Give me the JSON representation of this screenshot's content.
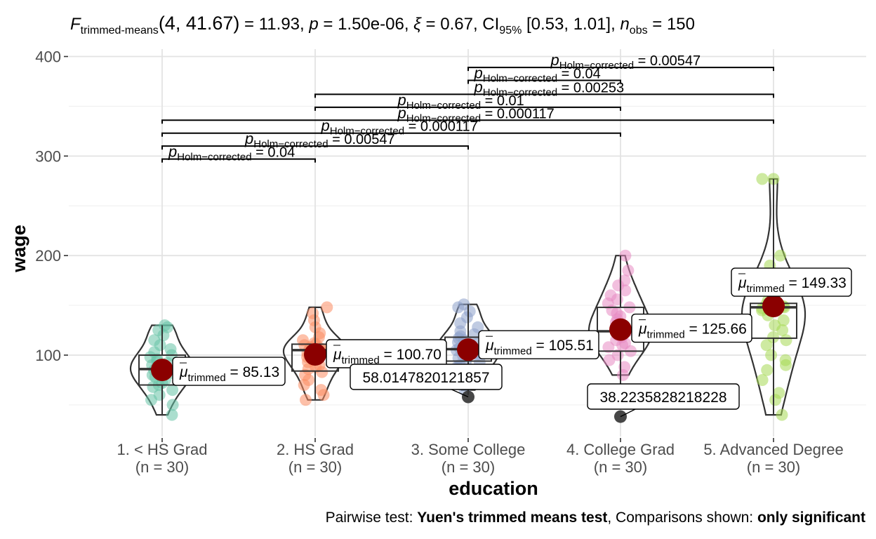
{
  "chart_data": {
    "type": "violin-box",
    "subtitle": {
      "parts": {
        "F": "F",
        "F_sub": "trimmed-means",
        "df": "(4, 41.67)",
        "stat": " = 11.93, ",
        "p": "p",
        "p_val": " = 1.50e-06, ",
        "xi": "ξ",
        "xi_val": " = 0.67, CI",
        "ci_sub": "95%",
        "ci_val": " [0.53, 1.01], ",
        "n": "n",
        "n_sub": "obs",
        "n_val": " = 150"
      }
    },
    "xlabel": "education",
    "ylabel": "wage",
    "ylim": [
      20,
      410
    ],
    "yticks": [
      100,
      200,
      300,
      400
    ],
    "grid": true,
    "categories": [
      {
        "name": "1. < HS Grad",
        "n_label": "(n = 30)",
        "color": "#66c2a5",
        "trimmed_mean": 85.13,
        "mean_label": "= 85.13",
        "box": {
          "q1": 70,
          "median": 86,
          "q3": 100,
          "whisker_low": 40,
          "whisker_high": 130
        },
        "points": [
          40,
          50,
          55,
          60,
          65,
          68,
          70,
          72,
          75,
          78,
          80,
          82,
          84,
          85,
          86,
          88,
          90,
          92,
          94,
          96,
          98,
          100,
          103,
          106,
          110,
          115,
          120,
          125,
          128,
          130
        ]
      },
      {
        "name": "2. HS Grad",
        "n_label": "(n = 30)",
        "color": "#fc8d62",
        "trimmed_mean": 100.7,
        "mean_label": "= 100.70",
        "box": {
          "q1": 84,
          "median": 105,
          "q3": 111,
          "whisker_low": 55,
          "whisker_high": 148
        },
        "points": [
          55,
          60,
          65,
          70,
          75,
          80,
          83,
          86,
          88,
          90,
          93,
          95,
          98,
          100,
          102,
          104,
          105,
          106,
          107,
          108,
          110,
          111,
          112,
          115,
          118,
          122,
          128,
          135,
          142,
          148
        ]
      },
      {
        "name": "3. Some College",
        "n_label": "(n = 30)",
        "color": "#8da0cb",
        "trimmed_mean": 105.51,
        "mean_label": "= 105.51",
        "box": {
          "q1": 94,
          "median": 106,
          "q3": 118,
          "whisker_low": 60,
          "whisker_high": 151
        },
        "points": [
          65,
          72,
          78,
          82,
          86,
          88,
          90,
          93,
          95,
          97,
          99,
          101,
          103,
          105,
          106,
          107,
          109,
          111,
          113,
          115,
          117,
          119,
          121,
          124,
          128,
          132,
          138,
          144,
          148,
          151
        ]
      },
      {
        "name": "4. College Grad",
        "n_label": "(n = 30)",
        "color": "#e78ac3",
        "trimmed_mean": 125.66,
        "mean_label": "= 125.66",
        "box": {
          "q1": 104,
          "median": 124,
          "q3": 148,
          "whisker_low": 70,
          "whisker_high": 200
        },
        "points": [
          80,
          88,
          95,
          100,
          104,
          108,
          110,
          112,
          115,
          118,
          120,
          122,
          124,
          126,
          128,
          130,
          133,
          136,
          139,
          142,
          145,
          148,
          152,
          156,
          160,
          165,
          170,
          175,
          185,
          200
        ]
      },
      {
        "name": "5. Advanced Degree",
        "n_label": "(n = 30)",
        "color": "#a6d854",
        "trimmed_mean": 149.33,
        "mean_label": "= 149.33",
        "box": {
          "q1": 117,
          "median": 148,
          "q3": 152,
          "whisker_low": 40,
          "whisker_high": 277
        },
        "points": [
          40,
          55,
          62,
          75,
          85,
          90,
          95,
          100,
          110,
          115,
          118,
          125,
          130,
          135,
          140,
          145,
          147,
          148,
          149,
          150,
          151,
          152,
          155,
          160,
          170,
          180,
          190,
          200,
          277,
          277
        ]
      }
    ],
    "outliers": [
      {
        "category": 2,
        "value": 58.0147820121857,
        "label": "58.0147820121857"
      },
      {
        "category": 3,
        "value": 38.2235828218228,
        "label": "38.2235828218228"
      }
    ],
    "mean_symbol": "μ",
    "mean_sub": "trimmed",
    "pairwise_p_symbol": "p",
    "pairwise_p_sub": "Holm−corrected",
    "pairwise": [
      {
        "from": 0,
        "to": 1,
        "y": 297,
        "label": " = 0.04"
      },
      {
        "from": 0,
        "to": 2,
        "y": 310,
        "label": " = 0.00547"
      },
      {
        "from": 0,
        "to": 3,
        "y": 323,
        "label": " = 0.000117"
      },
      {
        "from": 0,
        "to": 4,
        "y": 336,
        "label": " = 0.000117"
      },
      {
        "from": 1,
        "to": 3,
        "y": 349,
        "label": " = 0.01"
      },
      {
        "from": 1,
        "to": 4,
        "y": 362,
        "label": " = 0.00253"
      },
      {
        "from": 2,
        "to": 3,
        "y": 376,
        "label": " = 0.04"
      },
      {
        "from": 2,
        "to": 4,
        "y": 389,
        "label": " = 0.00547"
      }
    ],
    "caption": {
      "prefix": "Pairwise test: ",
      "test": "Yuen's trimmed means test",
      "middle": ", Comparisons shown: ",
      "shown": "only significant"
    }
  }
}
